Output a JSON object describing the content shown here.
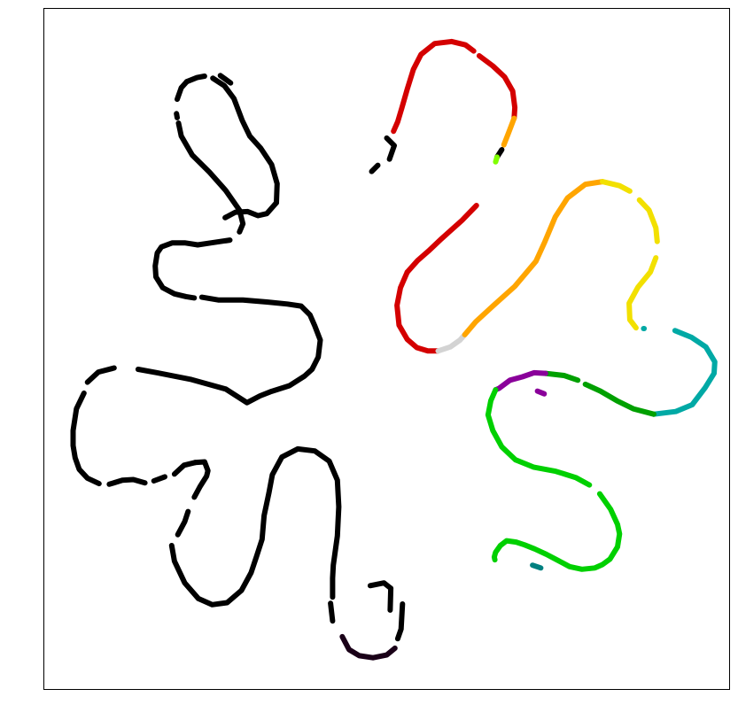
{
  "chart_data": {
    "type": "scatter",
    "title": "",
    "xlabel": "",
    "ylabel": "",
    "xlim": [
      0,
      100
    ],
    "ylim": [
      0,
      100
    ],
    "grid": false,
    "legend": "none",
    "colors": {
      "black": "#000000",
      "dark_purple": "#1a0018",
      "red": "#d40000",
      "orange": "#ffa500",
      "light_gray": "#d3d3d3",
      "yellow": "#f2e000",
      "teal": "#00a9a5",
      "dark_green": "#00a000",
      "bright_green": "#00d000",
      "purple": "#8a009a",
      "lime": "#80ff00",
      "dark_teal": "#008080"
    },
    "series": [
      {
        "color": "black",
        "points": [
          [
            52.3,
            12.5
          ],
          [
            52.1,
            8.8
          ],
          [
            51.6,
            7.4
          ]
        ]
      },
      {
        "color": "dark_purple",
        "points": [
          [
            51.2,
            6.0
          ],
          [
            50.0,
            5.0
          ],
          [
            48.0,
            4.6
          ],
          [
            46.0,
            4.9
          ],
          [
            44.5,
            5.8
          ],
          [
            43.5,
            7.7
          ]
        ]
      },
      {
        "color": "black",
        "points": [
          [
            50.6,
            14.8
          ],
          [
            50.5,
            11.6
          ]
        ]
      },
      {
        "color": "black",
        "points": [
          [
            50.6,
            14.8
          ],
          [
            49.6,
            15.6
          ],
          [
            47.6,
            15.2
          ]
        ]
      },
      {
        "color": "black",
        "points": [
          [
            42.1,
            10.0
          ],
          [
            41.8,
            12.6
          ]
        ]
      },
      {
        "color": "black",
        "points": [
          [
            42.1,
            13.5
          ],
          [
            42.1,
            16.3
          ],
          [
            42.2,
            18.2
          ],
          [
            42.8,
            22.5
          ],
          [
            43.0,
            26.8
          ],
          [
            42.8,
            30.7
          ],
          [
            41.6,
            33.5
          ],
          [
            39.5,
            35.0
          ],
          [
            37.0,
            35.3
          ],
          [
            34.7,
            34.1
          ],
          [
            33.3,
            31.5
          ],
          [
            32.8,
            28.8
          ],
          [
            32.1,
            25.5
          ],
          [
            31.8,
            22.0
          ],
          [
            31.0,
            19.5
          ],
          [
            30.2,
            17.1
          ],
          [
            28.8,
            14.5
          ],
          [
            26.7,
            12.7
          ],
          [
            24.5,
            12.4
          ],
          [
            22.5,
            13.3
          ],
          [
            20.5,
            15.6
          ],
          [
            19.0,
            18.8
          ],
          [
            18.6,
            21.1
          ]
        ]
      },
      {
        "color": "black",
        "points": [
          [
            19.5,
            22.7
          ],
          [
            20.5,
            24.6
          ],
          [
            21.0,
            26.1
          ]
        ]
      },
      {
        "color": "black",
        "points": [
          [
            21.9,
            28.2
          ],
          [
            22.7,
            29.7
          ],
          [
            23.7,
            31.3
          ],
          [
            23.9,
            32.1
          ],
          [
            23.4,
            33.4
          ],
          [
            22.0,
            33.3
          ]
        ]
      },
      {
        "color": "black",
        "points": [
          [
            22.0,
            33.3
          ],
          [
            20.4,
            32.9
          ],
          [
            19.0,
            31.6
          ]
        ]
      },
      {
        "color": "black",
        "points": [
          [
            17.6,
            31.2
          ],
          [
            16.0,
            30.6
          ]
        ]
      },
      {
        "color": "black",
        "points": [
          [
            14.7,
            30.3
          ],
          [
            13.0,
            30.8
          ],
          [
            11.4,
            30.7
          ],
          [
            9.5,
            30.1
          ]
        ]
      },
      {
        "color": "black",
        "points": [
          [
            8.0,
            30.2
          ],
          [
            6.3,
            31.0
          ],
          [
            5.1,
            32.3
          ],
          [
            4.5,
            34.0
          ],
          [
            4.2,
            35.8
          ],
          [
            4.2,
            38.0
          ],
          [
            4.7,
            41.2
          ],
          [
            5.8,
            43.5
          ]
        ]
      },
      {
        "color": "black",
        "points": [
          [
            6.3,
            45.1
          ],
          [
            7.9,
            46.6
          ],
          [
            9.8,
            47.1
          ],
          [
            10.2,
            47.2
          ]
        ]
      },
      {
        "color": "black",
        "points": [
          [
            13.7,
            47.0
          ],
          [
            16.5,
            46.5
          ],
          [
            21.5,
            45.5
          ],
          [
            26.5,
            44.1
          ],
          [
            29.6,
            42.1
          ],
          [
            31.5,
            43.1
          ],
          [
            33.0,
            43.7
          ],
          [
            35.8,
            44.6
          ],
          [
            38.0,
            46.0
          ],
          [
            39.1,
            47.0
          ],
          [
            40.0,
            48.8
          ],
          [
            40.3,
            51.3
          ],
          [
            39.5,
            53.4
          ],
          [
            38.8,
            55.0
          ],
          [
            37.5,
            56.3
          ],
          [
            35.5,
            56.6
          ],
          [
            32.5,
            56.9
          ],
          [
            29.0,
            57.2
          ],
          [
            25.4,
            57.2
          ],
          [
            23.0,
            57.6
          ]
        ]
      },
      {
        "color": "black",
        "points": [
          [
            21.9,
            57.5
          ],
          [
            20.7,
            57.7
          ],
          [
            19.0,
            58.1
          ],
          [
            17.3,
            59.0
          ],
          [
            16.3,
            60.6
          ],
          [
            16.2,
            62.2
          ],
          [
            16.5,
            64.1
          ],
          [
            17.1,
            65.0
          ],
          [
            18.7,
            65.6
          ],
          [
            20.5,
            65.6
          ],
          [
            22.4,
            65.3
          ]
        ]
      },
      {
        "color": "black",
        "points": [
          [
            22.4,
            65.3
          ],
          [
            24.4,
            65.6
          ],
          [
            27.1,
            66.0
          ]
        ]
      },
      {
        "color": "black",
        "points": [
          [
            26.4,
            69.3
          ],
          [
            27.9,
            70.1
          ],
          [
            29.7,
            70.2
          ],
          [
            31.2,
            69.6
          ],
          [
            32.5,
            69.9
          ],
          [
            33.9,
            71.5
          ]
        ]
      },
      {
        "color": "black",
        "points": [
          [
            33.9,
            71.5
          ],
          [
            34.0,
            74.3
          ],
          [
            33.2,
            77.1
          ],
          [
            31.6,
            79.5
          ],
          [
            30.0,
            81.3
          ],
          [
            28.9,
            83.6
          ],
          [
            27.7,
            86.8
          ],
          [
            26.3,
            88.7
          ],
          [
            24.6,
            89.8
          ]
        ]
      },
      {
        "color": "black",
        "points": [
          [
            23.4,
            90.1
          ],
          [
            22.3,
            89.9
          ],
          [
            20.8,
            89.3
          ]
        ]
      },
      {
        "color": "black",
        "points": [
          [
            27.2,
            89.1
          ],
          [
            25.7,
            90.2
          ]
        ]
      },
      {
        "color": "black",
        "points": [
          [
            20.8,
            89.3
          ],
          [
            20.0,
            88.4
          ],
          [
            19.4,
            86.7
          ]
        ]
      },
      {
        "color": "black",
        "points": [
          [
            19.3,
            84.6
          ],
          [
            19.4,
            84.0
          ]
        ]
      },
      {
        "color": "black",
        "points": [
          [
            19.6,
            83.2
          ],
          [
            20.0,
            81.3
          ],
          [
            21.6,
            78.5
          ],
          [
            24.1,
            76.0
          ],
          [
            26.5,
            73.3
          ],
          [
            28.5,
            70.4
          ],
          [
            29.0,
            68.4
          ],
          [
            28.5,
            67.2
          ]
        ]
      },
      {
        "color": "black",
        "points": [
          [
            47.8,
            76.1
          ],
          [
            48.7,
            77.0
          ]
        ]
      },
      {
        "color": "black",
        "points": [
          [
            50.4,
            77.9
          ],
          [
            51.1,
            79.9
          ],
          [
            50.0,
            81.0
          ]
        ]
      },
      {
        "color": "red",
        "points": [
          [
            51.0,
            82.0
          ],
          [
            51.6,
            83.4
          ],
          [
            52.2,
            85.4
          ],
          [
            53.0,
            88.2
          ],
          [
            53.9,
            91.1
          ],
          [
            55.0,
            93.3
          ],
          [
            57.0,
            94.9
          ],
          [
            59.5,
            95.2
          ],
          [
            61.5,
            94.7
          ],
          [
            62.7,
            93.8
          ]
        ]
      },
      {
        "color": "red",
        "points": [
          [
            63.5,
            93.1
          ],
          [
            65.5,
            91.6
          ],
          [
            67.2,
            90.0
          ],
          [
            68.4,
            87.9
          ],
          [
            68.7,
            85.5
          ],
          [
            68.6,
            83.9
          ]
        ]
      },
      {
        "color": "orange",
        "points": [
          [
            68.6,
            83.9
          ],
          [
            67.8,
            81.8
          ],
          [
            67.1,
            80.0
          ]
        ]
      },
      {
        "color": "black",
        "points": [
          [
            66.8,
            79.3
          ],
          [
            66.1,
            78.2
          ]
        ]
      },
      {
        "color": "lime",
        "points": [
          [
            66.1,
            78.2
          ],
          [
            65.9,
            77.5
          ]
        ]
      },
      {
        "color": "red",
        "points": [
          [
            63.1,
            71.1
          ],
          [
            61.0,
            68.9
          ],
          [
            58.0,
            66.2
          ],
          [
            56.1,
            64.4
          ],
          [
            54.5,
            63.0
          ],
          [
            53.0,
            61.3
          ]
        ]
      },
      {
        "color": "red",
        "points": [
          [
            53.0,
            61.3
          ],
          [
            52.0,
            59.0
          ],
          [
            51.5,
            56.4
          ],
          [
            51.8,
            53.5
          ],
          [
            53.0,
            51.4
          ],
          [
            54.4,
            50.2
          ],
          [
            56.0,
            49.7
          ],
          [
            57.5,
            49.7
          ]
        ]
      },
      {
        "color": "light_gray",
        "points": [
          [
            57.5,
            49.7
          ],
          [
            59.3,
            50.3
          ],
          [
            60.7,
            51.3
          ],
          [
            61.4,
            52.1
          ]
        ]
      },
      {
        "color": "orange",
        "points": [
          [
            61.4,
            52.1
          ],
          [
            63.0,
            54.0
          ],
          [
            65.5,
            56.3
          ],
          [
            68.7,
            59.2
          ],
          [
            71.8,
            62.9
          ],
          [
            73.1,
            65.8
          ],
          [
            74.6,
            69.4
          ],
          [
            76.4,
            72.2
          ],
          [
            79.0,
            74.2
          ],
          [
            81.5,
            74.6
          ]
        ]
      },
      {
        "color": "yellow",
        "points": [
          [
            81.5,
            74.6
          ],
          [
            84.0,
            74.0
          ],
          [
            85.5,
            73.2
          ]
        ]
      },
      {
        "color": "yellow",
        "points": [
          [
            86.9,
            71.9
          ],
          [
            88.3,
            70.4
          ],
          [
            89.3,
            67.8
          ],
          [
            89.5,
            65.8
          ]
        ]
      },
      {
        "color": "yellow",
        "points": [
          [
            89.3,
            63.4
          ],
          [
            88.5,
            61.3
          ],
          [
            86.7,
            59.1
          ],
          [
            85.4,
            56.7
          ],
          [
            85.5,
            54.3
          ],
          [
            86.4,
            53.1
          ]
        ]
      },
      {
        "color": "teal",
        "points": [
          [
            87.6,
            53.0
          ],
          [
            87.5,
            53.0
          ]
        ]
      },
      {
        "color": "teal",
        "points": [
          [
            92.1,
            52.7
          ],
          [
            94.5,
            51.7
          ],
          [
            96.6,
            50.3
          ],
          [
            97.9,
            48.1
          ],
          [
            97.8,
            46.4
          ],
          [
            96.5,
            44.3
          ],
          [
            94.6,
            41.8
          ],
          [
            92.2,
            40.8
          ],
          [
            89.0,
            40.4
          ]
        ]
      },
      {
        "color": "dark_green",
        "points": [
          [
            89.0,
            40.4
          ],
          [
            86.0,
            41.2
          ],
          [
            83.6,
            42.4
          ],
          [
            81.2,
            43.8
          ],
          [
            79.0,
            44.8
          ]
        ]
      },
      {
        "color": "dark_green",
        "points": [
          [
            77.9,
            45.4
          ],
          [
            75.9,
            46.1
          ],
          [
            73.2,
            46.4
          ]
        ]
      },
      {
        "color": "purple",
        "points": [
          [
            73.2,
            46.4
          ],
          [
            71.5,
            46.5
          ],
          [
            69.8,
            45.9
          ],
          [
            68.0,
            45.4
          ],
          [
            66.4,
            44.2
          ],
          [
            65.9,
            44.0
          ]
        ]
      },
      {
        "color": "bright_green",
        "points": [
          [
            65.9,
            44.0
          ],
          [
            65.2,
            42.4
          ],
          [
            64.8,
            40.3
          ],
          [
            65.5,
            38.0
          ],
          [
            66.8,
            35.6
          ],
          [
            68.8,
            33.7
          ],
          [
            71.5,
            32.6
          ],
          [
            74.7,
            32.0
          ],
          [
            77.6,
            31.1
          ],
          [
            79.6,
            30.0
          ]
        ]
      },
      {
        "color": "bright_green",
        "points": [
          [
            81.1,
            28.7
          ],
          [
            82.7,
            26.4
          ],
          [
            83.7,
            24.2
          ],
          [
            84.0,
            22.8
          ],
          [
            83.7,
            20.9
          ],
          [
            82.6,
            19.1
          ],
          [
            81.5,
            18.3
          ],
          [
            80.4,
            17.8
          ],
          [
            78.5,
            17.6
          ],
          [
            76.7,
            18.0
          ],
          [
            75.0,
            18.9
          ],
          [
            73.3,
            19.8
          ],
          [
            71.6,
            20.6
          ],
          [
            70.1,
            21.2
          ],
          [
            68.9,
            21.6
          ],
          [
            67.5,
            21.8
          ],
          [
            66.6,
            21.1
          ],
          [
            65.9,
            20.1
          ],
          [
            65.7,
            19.4
          ],
          [
            65.8,
            19.0
          ]
        ]
      },
      {
        "color": "purple",
        "points": [
          [
            73.0,
            43.4
          ],
          [
            72.0,
            43.8
          ]
        ]
      },
      {
        "color": "dark_teal",
        "points": [
          [
            72.5,
            17.8
          ],
          [
            71.3,
            18.2
          ]
        ]
      }
    ]
  }
}
